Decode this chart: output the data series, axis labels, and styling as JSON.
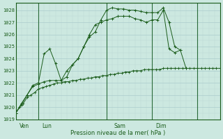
{
  "xlabel": "Pression niveau de la mer( hPa )",
  "background_color": "#cce8e0",
  "grid_color_major": "#aacccc",
  "grid_color_minor": "#bcd8d4",
  "line_color": "#1a5c1a",
  "ylim": [
    1019,
    1028.6
  ],
  "xlim": [
    0,
    108
  ],
  "yticks": [
    1019,
    1020,
    1021,
    1022,
    1023,
    1024,
    1025,
    1026,
    1027,
    1028
  ],
  "vlines": [
    12,
    48,
    72,
    96
  ],
  "day_labels": [
    [
      "Ven",
      2
    ],
    [
      "Lun",
      14
    ],
    [
      "Sam",
      52
    ],
    [
      "Dim",
      74
    ]
  ],
  "series1_x": [
    0,
    2,
    4,
    6,
    8,
    10,
    12,
    14,
    16,
    18,
    20,
    22,
    24,
    26,
    28,
    30,
    32,
    34,
    36,
    38,
    40,
    42,
    44,
    46,
    48,
    50,
    52,
    54,
    56,
    58,
    60,
    62,
    64,
    66,
    68,
    70,
    72,
    74,
    76,
    78,
    80,
    82,
    84,
    86,
    88,
    90,
    92,
    94,
    96,
    98,
    100,
    102,
    104,
    106,
    108
  ],
  "series1_y": [
    1019.5,
    1020.0,
    1020.3,
    1020.8,
    1021.0,
    1021.2,
    1021.5,
    1021.6,
    1021.7,
    1021.8,
    1021.9,
    1022.0,
    1022.0,
    1022.1,
    1022.1,
    1022.2,
    1022.2,
    1022.3,
    1022.3,
    1022.4,
    1022.4,
    1022.5,
    1022.5,
    1022.6,
    1022.6,
    1022.7,
    1022.7,
    1022.8,
    1022.8,
    1022.9,
    1022.9,
    1023.0,
    1023.0,
    1023.0,
    1023.1,
    1023.1,
    1023.1,
    1023.1,
    1023.1,
    1023.2,
    1023.2,
    1023.2,
    1023.2,
    1023.2,
    1023.2,
    1023.2,
    1023.2,
    1023.2,
    1023.2,
    1023.2,
    1023.2,
    1023.2,
    1023.2,
    1023.2,
    1023.2
  ],
  "series2_x": [
    0,
    3,
    6,
    9,
    12,
    15,
    18,
    21,
    24,
    27,
    30,
    33,
    36,
    39,
    42,
    45,
    48,
    51,
    54,
    57,
    60,
    63,
    66,
    69,
    72,
    75,
    78,
    81,
    84,
    87
  ],
  "series2_y": [
    1019.5,
    1020.2,
    1021.0,
    1021.7,
    1021.9,
    1022.1,
    1022.2,
    1022.2,
    1022.2,
    1023.0,
    1023.5,
    1024.0,
    1025.0,
    1025.8,
    1026.2,
    1027.2,
    1028.0,
    1028.2,
    1028.1,
    1028.1,
    1028.0,
    1028.0,
    1027.9,
    1027.8,
    1027.8,
    1027.8,
    1028.2,
    1027.0,
    1025.0,
    1024.7
  ],
  "series3_x": [
    0,
    3,
    6,
    9,
    12,
    15,
    18,
    21,
    24,
    27,
    30,
    33,
    36,
    39,
    42,
    45,
    48,
    51,
    54,
    57,
    60,
    63,
    66,
    69,
    72,
    75,
    78,
    81,
    84,
    87,
    90
  ],
  "series3_y": [
    1019.5,
    1020.3,
    1021.0,
    1021.8,
    1022.0,
    1024.4,
    1024.8,
    1023.6,
    1022.2,
    1022.5,
    1023.5,
    1024.0,
    1025.0,
    1026.0,
    1026.8,
    1027.0,
    1027.2,
    1027.3,
    1027.5,
    1027.5,
    1027.5,
    1027.3,
    1027.2,
    1027.0,
    1027.2,
    1027.2,
    1028.0,
    1024.8,
    1024.5,
    1024.7,
    1023.2
  ]
}
